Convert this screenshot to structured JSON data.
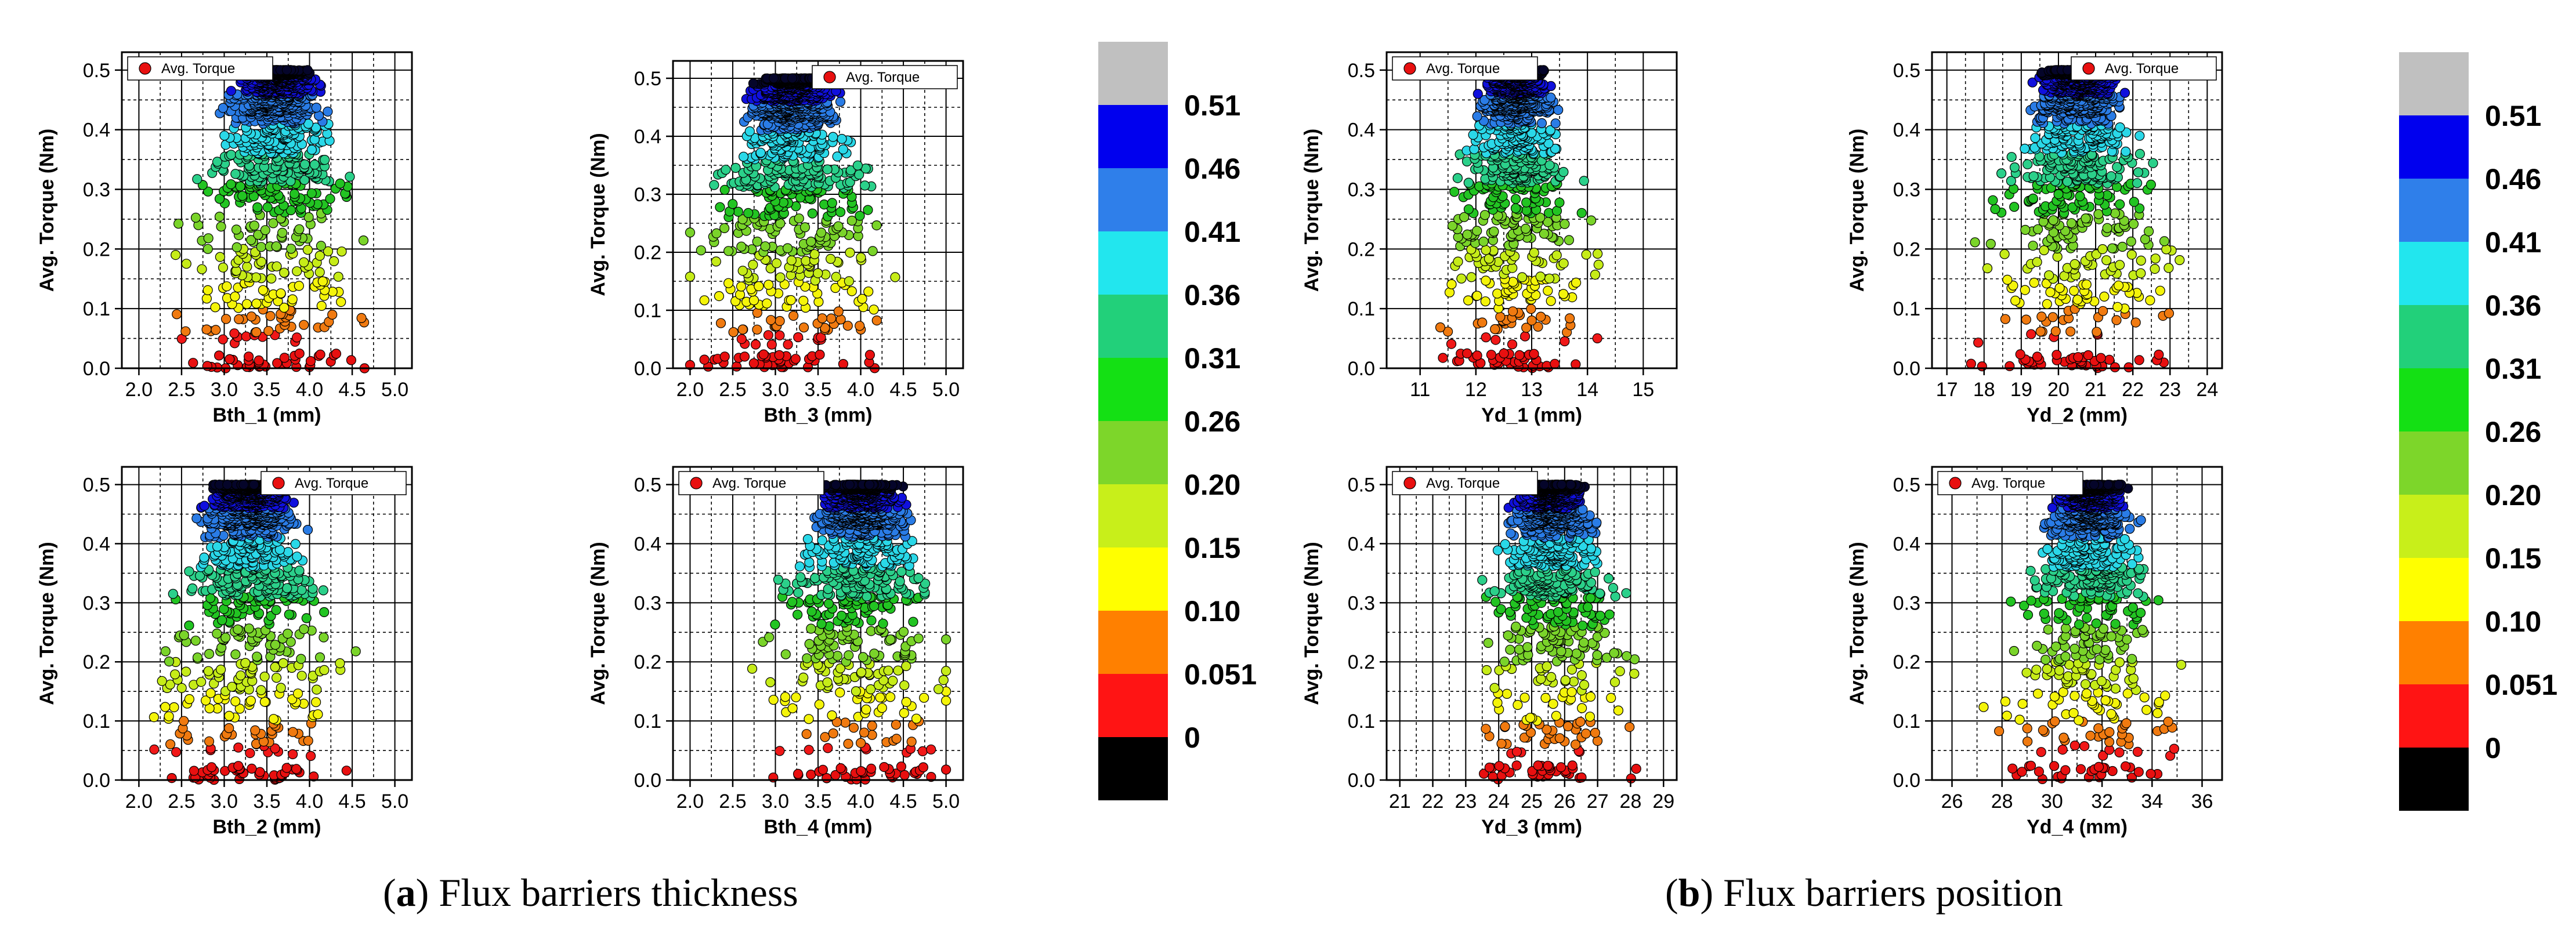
{
  "captions": [
    {
      "open": "(",
      "letter": "a",
      "close": ")",
      "text": " Flux barriers thickness"
    },
    {
      "open": "(",
      "letter": "b",
      "close": ")",
      "text": " Flux barriers position"
    }
  ],
  "colorbar": {
    "labels": [
      "0.51",
      "0.46",
      "0.41",
      "0.36",
      "0.31",
      "0.26",
      "0.20",
      "0.15",
      "0.10",
      "0.051",
      "0"
    ],
    "colors_top_to_bottom": [
      "#c0c0c0",
      "#0000ee",
      "#2f7fea",
      "#22e6ee",
      "#22d07a",
      "#14e014",
      "#7dd62a",
      "#c8ef1a",
      "#ffff00",
      "#ff8000",
      "#ff1414",
      "#000000"
    ]
  },
  "chart_data": [
    {
      "id": "bth1",
      "type": "scatter",
      "title": "",
      "xlabel": "Bth_1 (mm)",
      "ylabel": "Avg. Torque (Nm)",
      "legend": "Avg. Torque",
      "legend_position": "top-left",
      "xlim": [
        1.8,
        5.2
      ],
      "ylim": [
        0,
        0.53
      ],
      "xticks": [
        "2.0",
        "2.5",
        "3.0",
        "3.5",
        "4.0",
        "4.5",
        "5.0"
      ],
      "xtick_values": [
        2.0,
        2.5,
        3.0,
        3.5,
        4.0,
        4.5,
        5.0
      ],
      "yticks": [
        "0.0",
        "0.1",
        "0.2",
        "0.3",
        "0.4",
        "0.5"
      ],
      "ytick_values": [
        0.0,
        0.1,
        0.2,
        0.3,
        0.4,
        0.5
      ],
      "cluster_center": [
        3.6,
        0.47
      ],
      "x_spread": [
        2.0,
        5.0
      ],
      "seed": 11
    },
    {
      "id": "bth3",
      "type": "scatter",
      "title": "",
      "xlabel": "Bth_3 (mm)",
      "ylabel": "Avg. Torque (Nm)",
      "legend": "Avg. Torque",
      "legend_position": "top-right",
      "xlim": [
        1.8,
        5.2
      ],
      "ylim": [
        0,
        0.53
      ],
      "xticks": [
        "2.0",
        "2.5",
        "3.0",
        "3.5",
        "4.0",
        "4.5",
        "5.0"
      ],
      "xtick_values": [
        2.0,
        2.5,
        3.0,
        3.5,
        4.0,
        4.5,
        5.0
      ],
      "yticks": [
        "0.0",
        "0.1",
        "0.2",
        "0.3",
        "0.4",
        "0.5"
      ],
      "ytick_values": [
        0.0,
        0.1,
        0.2,
        0.3,
        0.4,
        0.5
      ],
      "cluster_center": [
        3.2,
        0.47
      ],
      "x_spread": [
        2.0,
        5.0
      ],
      "seed": 23
    },
    {
      "id": "bth2",
      "type": "scatter",
      "title": "",
      "xlabel": "Bth_2 (mm)",
      "ylabel": "Avg. Torque (Nm)",
      "legend": "Avg. Torque",
      "legend_position": "top-right",
      "xlim": [
        1.8,
        5.2
      ],
      "ylim": [
        0,
        0.53
      ],
      "xticks": [
        "2.0",
        "2.5",
        "3.0",
        "3.5",
        "4.0",
        "4.5",
        "5.0"
      ],
      "xtick_values": [
        2.0,
        2.5,
        3.0,
        3.5,
        4.0,
        4.5,
        5.0
      ],
      "yticks": [
        "0.0",
        "0.1",
        "0.2",
        "0.3",
        "0.4",
        "0.5"
      ],
      "ytick_values": [
        0.0,
        0.1,
        0.2,
        0.3,
        0.4,
        0.5
      ],
      "cluster_center": [
        3.3,
        0.47
      ],
      "x_spread": [
        2.0,
        5.0
      ],
      "seed": 37
    },
    {
      "id": "bth4",
      "type": "scatter",
      "title": "",
      "xlabel": "Bth_4 (mm)",
      "ylabel": "Avg. Torque (Nm)",
      "legend": "Avg. Torque",
      "legend_position": "top-left",
      "xlim": [
        1.8,
        5.2
      ],
      "ylim": [
        0,
        0.53
      ],
      "xticks": [
        "2.0",
        "2.5",
        "3.0",
        "3.5",
        "4.0",
        "4.5",
        "5.0"
      ],
      "xtick_values": [
        2.0,
        2.5,
        3.0,
        3.5,
        4.0,
        4.5,
        5.0
      ],
      "yticks": [
        "0.0",
        "0.1",
        "0.2",
        "0.3",
        "0.4",
        "0.5"
      ],
      "ytick_values": [
        0.0,
        0.1,
        0.2,
        0.3,
        0.4,
        0.5
      ],
      "cluster_center": [
        4.0,
        0.47
      ],
      "x_spread": [
        2.0,
        5.0
      ],
      "seed": 41
    },
    {
      "id": "yd1",
      "type": "scatter",
      "title": "",
      "xlabel": "Yd_1 (mm)",
      "ylabel": "Avg. Torque (Nm)",
      "legend": "Avg. Torque",
      "legend_position": "top-left",
      "xlim": [
        10.4,
        15.6
      ],
      "ylim": [
        0,
        0.53
      ],
      "xticks": [
        "11",
        "12",
        "13",
        "14",
        "15"
      ],
      "xtick_values": [
        11,
        12,
        13,
        14,
        15
      ],
      "yticks": [
        "0.0",
        "0.1",
        "0.2",
        "0.3",
        "0.4",
        "0.5"
      ],
      "ytick_values": [
        0.0,
        0.1,
        0.2,
        0.3,
        0.4,
        0.5
      ],
      "cluster_center": [
        12.7,
        0.47
      ],
      "x_spread": [
        11.2,
        14.8
      ],
      "seed": 53
    },
    {
      "id": "yd2",
      "type": "scatter",
      "title": "",
      "xlabel": "Yd_2 (mm)",
      "ylabel": "Avg. Torque (Nm)",
      "legend": "Avg. Torque",
      "legend_position": "top-right",
      "xlim": [
        16.6,
        24.4
      ],
      "ylim": [
        0,
        0.53
      ],
      "xticks": [
        "17",
        "18",
        "19",
        "20",
        "21",
        "22",
        "23",
        "24"
      ],
      "xtick_values": [
        17,
        18,
        19,
        20,
        21,
        22,
        23,
        24
      ],
      "yticks": [
        "0.0",
        "0.1",
        "0.2",
        "0.3",
        "0.4",
        "0.5"
      ],
      "ytick_values": [
        0.0,
        0.1,
        0.2,
        0.3,
        0.4,
        0.5
      ],
      "cluster_center": [
        20.5,
        0.47
      ],
      "x_spread": [
        17.2,
        23.8
      ],
      "seed": 67
    },
    {
      "id": "yd3",
      "type": "scatter",
      "title": "",
      "xlabel": "Yd_3 (mm)",
      "ylabel": "Avg. Torque (Nm)",
      "legend": "Avg. Torque",
      "legend_position": "top-left",
      "xlim": [
        20.6,
        29.4
      ],
      "ylim": [
        0,
        0.53
      ],
      "xticks": [
        "21",
        "22",
        "23",
        "24",
        "25",
        "26",
        "27",
        "28",
        "29"
      ],
      "xtick_values": [
        21,
        22,
        23,
        24,
        25,
        26,
        27,
        28,
        29
      ],
      "yticks": [
        "0.0",
        "0.1",
        "0.2",
        "0.3",
        "0.4",
        "0.5"
      ],
      "ytick_values": [
        0.0,
        0.1,
        0.2,
        0.3,
        0.4,
        0.5
      ],
      "cluster_center": [
        25.6,
        0.47
      ],
      "x_spread": [
        21.8,
        28.6
      ],
      "seed": 79
    },
    {
      "id": "yd4",
      "type": "scatter",
      "title": "",
      "xlabel": "Yd_4 (mm)",
      "ylabel": "Avg. Torque (Nm)",
      "legend": "Avg. Torque",
      "legend_position": "top-left",
      "xlim": [
        25.2,
        36.8
      ],
      "ylim": [
        0,
        0.53
      ],
      "xticks": [
        "26",
        "28",
        "30",
        "32",
        "34",
        "36"
      ],
      "xtick_values": [
        26,
        28,
        30,
        32,
        34,
        36
      ],
      "yticks": [
        "0.0",
        "0.1",
        "0.2",
        "0.3",
        "0.4",
        "0.5"
      ],
      "ytick_values": [
        0.0,
        0.1,
        0.2,
        0.3,
        0.4,
        0.5
      ],
      "cluster_center": [
        31.5,
        0.47
      ],
      "x_spread": [
        26.2,
        35.4
      ],
      "seed": 97
    }
  ]
}
